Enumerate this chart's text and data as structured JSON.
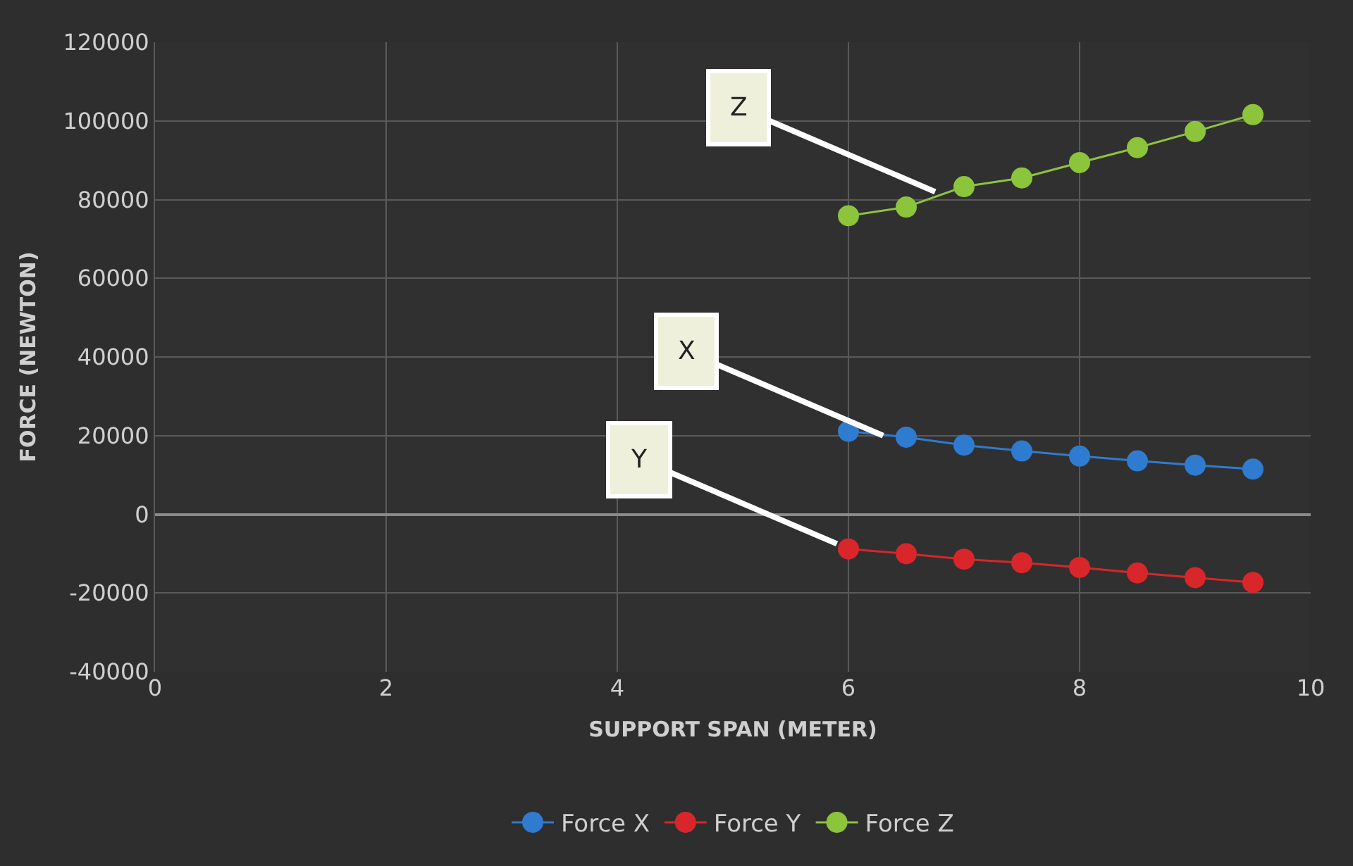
{
  "chart_data": {
    "type": "line",
    "xlabel": "SUPPORT SPAN (METER)",
    "ylabel": "FORCE (NEWTON)",
    "x": [
      6,
      6.5,
      7,
      7.5,
      8,
      8.5,
      9,
      9.5
    ],
    "series": [
      {
        "name": "Force X",
        "color": "#2f7bd0",
        "values": [
          21100,
          19600,
          17600,
          16100,
          14800,
          13600,
          12500,
          11500
        ]
      },
      {
        "name": "Force Y",
        "color": "#d8262a",
        "values": [
          -8800,
          -10000,
          -11400,
          -12300,
          -13500,
          -14900,
          -16100,
          -17300
        ]
      },
      {
        "name": "Force Z",
        "color": "#8cc43c",
        "values": [
          75900,
          78100,
          83300,
          85500,
          89400,
          93200,
          97300,
          101600
        ]
      }
    ],
    "annotations": [
      {
        "text": "Z",
        "x": 6.75,
        "y": 82000
      },
      {
        "text": "X",
        "x": 6.3,
        "y": 20000
      },
      {
        "text": "Y",
        "x": 5.9,
        "y": -7500
      }
    ],
    "xlim": [
      0,
      10
    ],
    "xticks": [
      0,
      2,
      4,
      6,
      8,
      10
    ],
    "ylim": [
      -40000,
      120000
    ],
    "yticks": [
      -40000,
      -20000,
      0,
      20000,
      40000,
      60000,
      80000,
      100000,
      120000
    ],
    "grid": true,
    "legend": "bottom",
    "marker": "circle",
    "line_style": "solid"
  }
}
